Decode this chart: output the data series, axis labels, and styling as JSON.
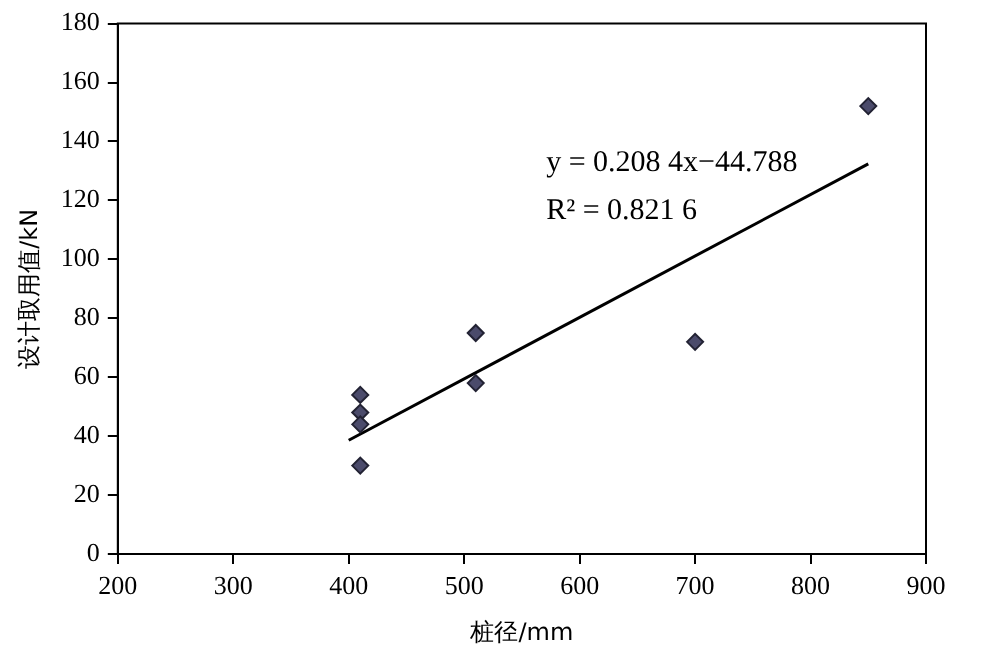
{
  "chart_data": {
    "type": "scatter",
    "xlabel": "桩径/mm",
    "ylabel": "设计取用值/kN",
    "xlim": [
      200,
      900
    ],
    "xticks": [
      200,
      300,
      400,
      500,
      600,
      700,
      800,
      900
    ],
    "ylim": [
      0,
      180
    ],
    "yticks": [
      0,
      20,
      40,
      60,
      80,
      100,
      120,
      140,
      160,
      180
    ],
    "grid": false,
    "legend": false,
    "series": [
      {
        "color": "#4b4b6b",
        "marker": "diamond",
        "x": [
          410,
          410,
          410,
          410,
          510,
          510,
          700,
          850
        ],
        "values": [
          54,
          48,
          44,
          30,
          75,
          58,
          72,
          152
        ]
      },
      {
        "type": "line",
        "color": "#000000",
        "marker": "none",
        "x": [
          400,
          850
        ],
        "values": [
          38.6,
          132.4
        ]
      }
    ],
    "annotations": [
      "y = 0.208 4x−44.788",
      "R² = 0.821 6"
    ]
  }
}
